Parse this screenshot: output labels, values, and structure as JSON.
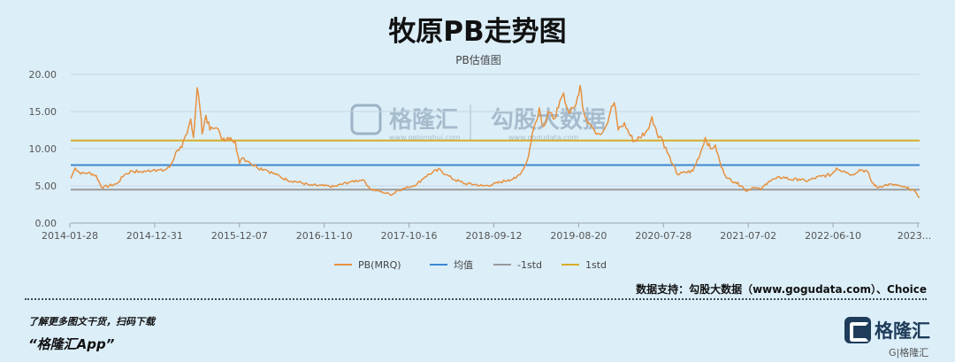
{
  "header": {
    "title": "牧原PB走势图"
  },
  "footer": {
    "source": "数据支持：勾股大数据（www.gogudata.com）、Choice",
    "promo_line": "了解更多图文干货，扫码下载",
    "promo_app": "“格隆汇App”",
    "brand_name": "格隆汇",
    "brand_handle": "G|格隆汇"
  },
  "watermark": {
    "left_name": "格隆汇",
    "left_url": "www.gelonghui.com",
    "right_name": "勾股大数据",
    "right_url": "www.gogudata.com"
  },
  "colors": {
    "pb": "#e6913f",
    "mean": "#3b88d1",
    "minus_std": "#9a9a9a",
    "plus_std": "#d6ad29",
    "axis": "#9aa4ad",
    "grid": "#c7d7e2"
  },
  "chart_data": {
    "type": "line",
    "title": "",
    "subtitle": "PB估值图",
    "xlabel": "",
    "ylabel": "",
    "ylim": [
      0,
      20
    ],
    "yticks": [
      "0.00",
      "5.00",
      "10.00",
      "15.00",
      "20.00"
    ],
    "xlim": [
      "2014-01-28",
      "2023-05-31"
    ],
    "xticks": [
      "2014-01-28",
      "2014-12-31",
      "2015-12-07",
      "2016-11-10",
      "2017-10-16",
      "2018-09-12",
      "2019-08-20",
      "2020-07-28",
      "2021-07-02",
      "2022-06-10",
      "2023..."
    ],
    "grid": "horizontal",
    "legend": "bottom",
    "series": [
      {
        "name": "PB(MRQ)",
        "points": [
          [
            "2014-01-28",
            6.0
          ],
          [
            "2014-02-15",
            7.4
          ],
          [
            "2014-03-10",
            6.6
          ],
          [
            "2014-04-10",
            6.8
          ],
          [
            "2014-05-10",
            6.4
          ],
          [
            "2014-06-01",
            4.8
          ],
          [
            "2014-07-01",
            5.0
          ],
          [
            "2014-08-01",
            5.3
          ],
          [
            "2014-09-01",
            6.5
          ],
          [
            "2014-10-01",
            7.0
          ],
          [
            "2014-11-01",
            6.9
          ],
          [
            "2014-12-01",
            7.0
          ],
          [
            "2014-12-31",
            7.2
          ],
          [
            "2015-02-01",
            7.0
          ],
          [
            "2015-03-01",
            7.5
          ],
          [
            "2015-04-01",
            9.8
          ],
          [
            "2015-04-20",
            10.2
          ],
          [
            "2015-05-10",
            12.0
          ],
          [
            "2015-05-25",
            14.0
          ],
          [
            "2015-06-05",
            11.5
          ],
          [
            "2015-06-20",
            18.2
          ],
          [
            "2015-07-01",
            15.5
          ],
          [
            "2015-07-10",
            12.0
          ],
          [
            "2015-07-25",
            14.5
          ],
          [
            "2015-08-10",
            12.5
          ],
          [
            "2015-09-01",
            12.8
          ],
          [
            "2015-09-20",
            12.0
          ],
          [
            "2015-10-10",
            11.0
          ],
          [
            "2015-11-01",
            11.5
          ],
          [
            "2015-11-20",
            11.0
          ],
          [
            "2015-12-07",
            8.0
          ],
          [
            "2015-12-20",
            8.8
          ],
          [
            "2016-01-15",
            8.2
          ],
          [
            "2016-02-15",
            7.5
          ],
          [
            "2016-03-20",
            7.2
          ],
          [
            "2016-05-01",
            6.5
          ],
          [
            "2016-06-15",
            5.8
          ],
          [
            "2016-08-01",
            5.5
          ],
          [
            "2016-09-15",
            5.1
          ],
          [
            "2016-11-10",
            5.0
          ],
          [
            "2016-12-20",
            4.9
          ],
          [
            "2017-01-20",
            5.2
          ],
          [
            "2017-03-01",
            5.6
          ],
          [
            "2017-04-15",
            5.8
          ],
          [
            "2017-05-20",
            4.5
          ],
          [
            "2017-07-01",
            4.2
          ],
          [
            "2017-08-10",
            3.8
          ],
          [
            "2017-09-01",
            4.4
          ],
          [
            "2017-10-16",
            4.8
          ],
          [
            "2017-11-20",
            5.3
          ],
          [
            "2017-12-20",
            6.2
          ],
          [
            "2018-01-20",
            6.8
          ],
          [
            "2018-02-20",
            7.2
          ],
          [
            "2018-03-15",
            6.5
          ],
          [
            "2018-04-20",
            5.8
          ],
          [
            "2018-06-01",
            5.3
          ],
          [
            "2018-07-10",
            5.2
          ],
          [
            "2018-08-10",
            5.0
          ],
          [
            "2018-09-12",
            5.1
          ],
          [
            "2018-10-20",
            5.5
          ],
          [
            "2018-11-20",
            5.8
          ],
          [
            "2018-12-20",
            6.0
          ],
          [
            "2019-01-20",
            7.2
          ],
          [
            "2019-02-10",
            9.0
          ],
          [
            "2019-02-25",
            12.0
          ],
          [
            "2019-03-10",
            13.5
          ],
          [
            "2019-03-25",
            15.5
          ],
          [
            "2019-04-10",
            13.0
          ],
          [
            "2019-05-01",
            15.0
          ],
          [
            "2019-05-20",
            14.0
          ],
          [
            "2019-06-10",
            15.5
          ],
          [
            "2019-07-01",
            17.5
          ],
          [
            "2019-07-20",
            15.0
          ],
          [
            "2019-08-20",
            16.0
          ],
          [
            "2019-09-05",
            18.5
          ],
          [
            "2019-09-20",
            15.0
          ],
          [
            "2019-10-10",
            13.5
          ],
          [
            "2019-11-01",
            12.5
          ],
          [
            "2019-11-20",
            12.0
          ],
          [
            "2019-12-15",
            12.8
          ],
          [
            "2020-01-05",
            15.0
          ],
          [
            "2020-01-20",
            16.2
          ],
          [
            "2020-02-05",
            12.5
          ],
          [
            "2020-03-01",
            13.5
          ],
          [
            "2020-03-20",
            12.0
          ],
          [
            "2020-04-10",
            11.0
          ],
          [
            "2020-05-01",
            11.5
          ],
          [
            "2020-06-01",
            12.5
          ],
          [
            "2020-06-20",
            14.3
          ],
          [
            "2020-07-10",
            12.0
          ],
          [
            "2020-07-28",
            11.5
          ],
          [
            "2020-08-20",
            9.5
          ],
          [
            "2020-09-10",
            8.0
          ],
          [
            "2020-10-01",
            6.5
          ],
          [
            "2020-11-01",
            6.8
          ],
          [
            "2020-12-01",
            7.0
          ],
          [
            "2021-01-01",
            9.5
          ],
          [
            "2021-01-20",
            11.5
          ],
          [
            "2021-02-10",
            10.0
          ],
          [
            "2021-03-01",
            10.5
          ],
          [
            "2021-03-25",
            7.5
          ],
          [
            "2021-04-20",
            6.0
          ],
          [
            "2021-05-20",
            5.5
          ],
          [
            "2021-06-15",
            5.0
          ],
          [
            "2021-07-02",
            4.3
          ],
          [
            "2021-08-01",
            4.8
          ],
          [
            "2021-09-01",
            4.5
          ],
          [
            "2021-10-01",
            5.6
          ],
          [
            "2021-11-01",
            6.0
          ],
          [
            "2021-12-01",
            6.2
          ],
          [
            "2022-01-01",
            5.8
          ],
          [
            "2022-02-01",
            5.9
          ],
          [
            "2022-03-01",
            5.6
          ],
          [
            "2022-04-01",
            6.0
          ],
          [
            "2022-05-01",
            6.3
          ],
          [
            "2022-06-10",
            6.5
          ],
          [
            "2022-07-01",
            7.4
          ],
          [
            "2022-08-01",
            7.0
          ],
          [
            "2022-09-01",
            6.5
          ],
          [
            "2022-10-01",
            7.2
          ],
          [
            "2022-11-01",
            7.0
          ],
          [
            "2022-11-20",
            5.5
          ],
          [
            "2022-12-10",
            4.8
          ],
          [
            "2023-01-10",
            5.1
          ],
          [
            "2023-02-10",
            5.2
          ],
          [
            "2023-03-10",
            5.0
          ],
          [
            "2023-04-10",
            4.7
          ],
          [
            "2023-05-01",
            4.5
          ],
          [
            "2023-05-20",
            3.9
          ],
          [
            "2023-05-31",
            3.4
          ]
        ]
      },
      {
        "name": "均值",
        "value": 7.8
      },
      {
        "name": "-1std",
        "value": 4.5
      },
      {
        "name": "1std",
        "value": 11.1
      }
    ]
  }
}
